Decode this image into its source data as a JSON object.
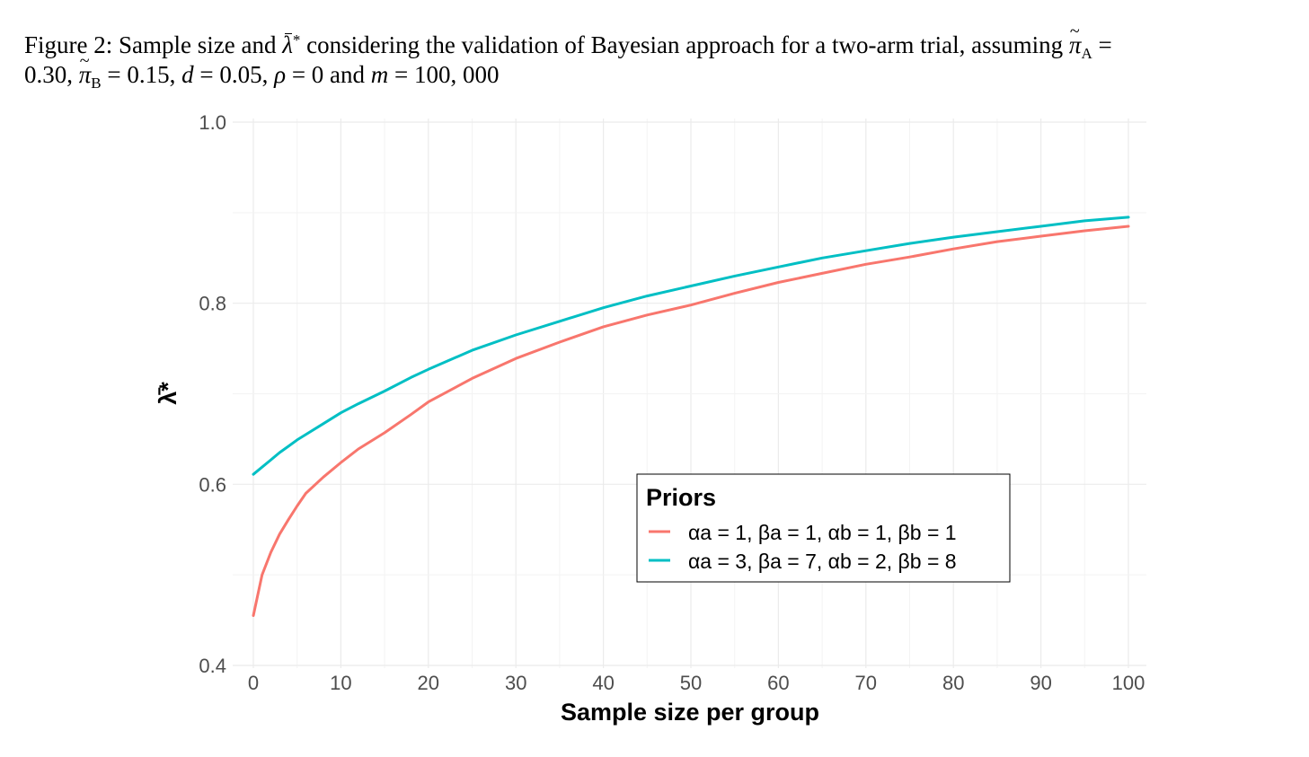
{
  "caption": {
    "line1_text_a": "Figure 2: Sample size and ",
    "lambda_symbol": "λ",
    "star": "*",
    "line1_text_b": " considering the validation of Bayesian approach for a two-arm trial, assuming ",
    "pi_symbol": "π",
    "sub_a": "A",
    "eq_a": " =",
    "val_a": "0.30, ",
    "sub_b": "B",
    "eq_b": " = 0.15, ",
    "d_symbol": "d",
    "eq_d": " = 0.05, ",
    "rho_symbol": "ρ",
    "eq_rho": " = 0 and ",
    "m_symbol": "m",
    "eq_m": " = 100, 000"
  },
  "chart_data": {
    "type": "line",
    "xlabel": "Sample size per group",
    "ylabel": "λ̄*",
    "xlim": [
      0,
      100
    ],
    "ylim": [
      0.4,
      1.0
    ],
    "x_ticks": [
      0,
      10,
      20,
      30,
      40,
      50,
      60,
      70,
      80,
      90,
      100
    ],
    "y_ticks": [
      0.4,
      0.6,
      0.8,
      1.0
    ],
    "y_tick_labels": [
      "0.4",
      "0.6",
      "0.8",
      "1.0"
    ],
    "grid": true,
    "legend": {
      "title": "Priors",
      "position": "center-right inside plot"
    },
    "series": [
      {
        "name": "αa = 1,  βa = 1, αb = 1,  βb = 1",
        "color": "#F8766D",
        "x": [
          0,
          1,
          2,
          3,
          4,
          5,
          6,
          8,
          10,
          12,
          15,
          18,
          20,
          25,
          30,
          35,
          40,
          45,
          50,
          55,
          60,
          65,
          70,
          75,
          80,
          85,
          90,
          95,
          100
        ],
        "y": [
          0.455,
          0.5,
          0.525,
          0.545,
          0.561,
          0.576,
          0.59,
          0.608,
          0.624,
          0.639,
          0.657,
          0.677,
          0.691,
          0.717,
          0.739,
          0.757,
          0.774,
          0.787,
          0.798,
          0.811,
          0.823,
          0.833,
          0.843,
          0.851,
          0.86,
          0.868,
          0.874,
          0.88,
          0.885
        ]
      },
      {
        "name": "αa = 3,  βa = 7, αb = 2,  βb = 8",
        "color": "#00BFC4",
        "x": [
          0,
          1,
          2,
          3,
          4,
          5,
          6,
          8,
          10,
          12,
          15,
          18,
          20,
          25,
          30,
          35,
          40,
          45,
          50,
          55,
          60,
          65,
          70,
          75,
          80,
          85,
          90,
          95,
          100
        ],
        "y": [
          0.611,
          0.619,
          0.627,
          0.635,
          0.642,
          0.649,
          0.655,
          0.667,
          0.679,
          0.689,
          0.703,
          0.718,
          0.727,
          0.748,
          0.765,
          0.78,
          0.795,
          0.808,
          0.819,
          0.83,
          0.84,
          0.85,
          0.858,
          0.866,
          0.873,
          0.879,
          0.885,
          0.891,
          0.895
        ]
      }
    ]
  }
}
